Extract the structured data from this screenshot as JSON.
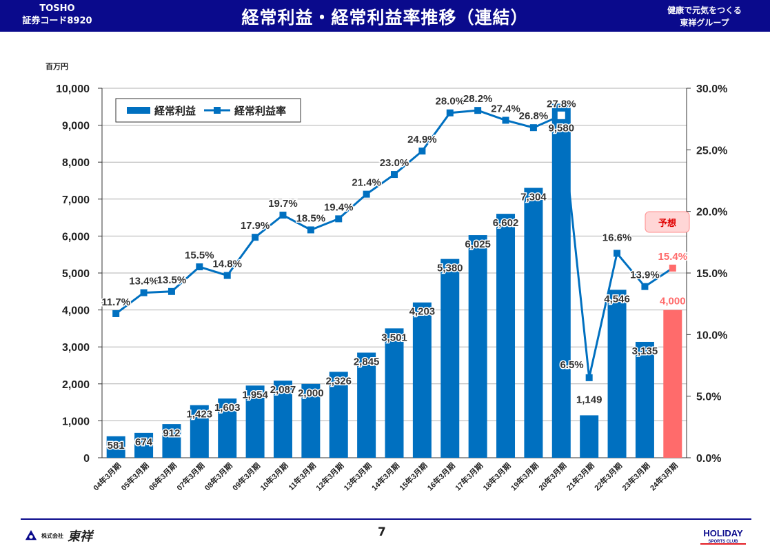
{
  "header": {
    "left_line1": "TOSHO",
    "left_line2": "証券コード8920",
    "title": "経常利益・経常利益率推移（連結）",
    "right_line1": "健康で元気をつくる",
    "right_line2": "東祥グループ"
  },
  "colors": {
    "header_bg": "#0a0a8c",
    "bar": "#0070c0",
    "forecast": "#ff6b6b",
    "line": "#0070c0"
  },
  "forecast_label": "予想",
  "footer": {
    "page": "7",
    "company_logo_text": "株式会社",
    "company_logo_name": "東祥",
    "brand_logo": "HOLIDAY SPORTS CLUB"
  },
  "chart_data": {
    "type": "bar",
    "unit_label": "百万円",
    "categories": [
      "04年3月期",
      "05年3月期",
      "06年3月期",
      "07年3月期",
      "08年3月期",
      "09年3月期",
      "10年3月期",
      "11年3月期",
      "12年3月期",
      "13年3月期",
      "14年3月期",
      "15年3月期",
      "16年3月期",
      "17年3月期",
      "18年3月期",
      "19年3月期",
      "20年3月期",
      "21年3月期",
      "22年3月期",
      "23年3月期",
      "24年3月期"
    ],
    "series": [
      {
        "name": "経常利益",
        "type": "bar",
        "axis": "left",
        "values": [
          581,
          674,
          912,
          1423,
          1603,
          1954,
          2087,
          2000,
          2326,
          2845,
          3501,
          4203,
          5380,
          6025,
          6602,
          7304,
          9580,
          1149,
          4546,
          3135,
          4000
        ],
        "labels": [
          "581",
          "674",
          "912",
          "1,423",
          "1,603",
          "1,954",
          "2,087",
          "2,000",
          "2,326",
          "2,845",
          "3,501",
          "4,203",
          "5,380",
          "6,025",
          "6,602",
          "7,304",
          "9,580",
          "1,149",
          "4,546",
          "3,135",
          "4,000"
        ]
      },
      {
        "name": "経常利益率",
        "type": "line",
        "axis": "right",
        "values": [
          11.7,
          13.4,
          13.5,
          15.5,
          14.8,
          17.9,
          19.7,
          18.5,
          19.4,
          21.4,
          23.0,
          24.9,
          28.0,
          28.2,
          27.4,
          26.8,
          27.8,
          6.5,
          16.6,
          13.9,
          15.4
        ],
        "labels": [
          "11.7%",
          "13.4%",
          "13.5%",
          "15.5%",
          "14.8%",
          "17.9%",
          "19.7%",
          "18.5%",
          "19.4%",
          "21.4%",
          "23.0%",
          "24.9%",
          "28.0%",
          "28.2%",
          "27.4%",
          "26.8%",
          "27.8%",
          "6.5%",
          "16.6%",
          "13.9%",
          "15.4%"
        ]
      }
    ],
    "forecast_index": 20,
    "ylim_left": [
      0,
      10000
    ],
    "yticks_left": [
      "0",
      "1,000",
      "2,000",
      "3,000",
      "4,000",
      "5,000",
      "6,000",
      "7,000",
      "8,000",
      "9,000",
      "10,000"
    ],
    "ylim_right": [
      0,
      30
    ],
    "yticks_right": [
      "0.0%",
      "5.0%",
      "10.0%",
      "15.0%",
      "20.0%",
      "25.0%",
      "30.0%"
    ],
    "grid": true,
    "legend_position": "top-left"
  }
}
